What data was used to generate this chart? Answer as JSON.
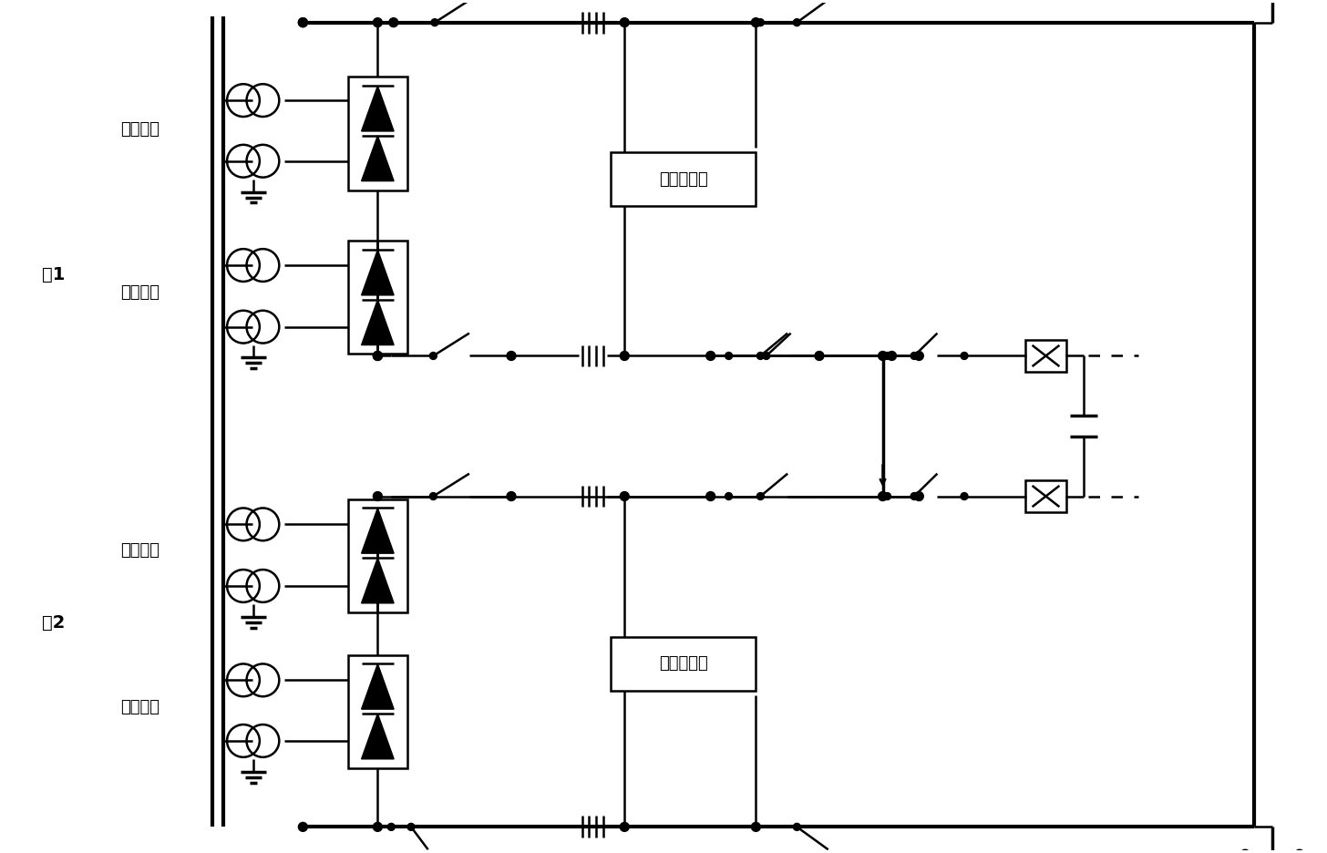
{
  "bg_color": "#ffffff",
  "lw": 1.8,
  "lw_thick": 2.5,
  "lw_bus": 3.0,
  "labels": {
    "pole1": "极1",
    "pole2": "极2",
    "high_valve_top": "高压阀组",
    "low_valve_top": "低压阀组",
    "low_valve_bottom": "低压阀组",
    "high_valve_bottom": "高压阀组",
    "dc_filter1": "直流滤波器",
    "dc_filter2": "直流滤波器"
  },
  "font_size": 13
}
